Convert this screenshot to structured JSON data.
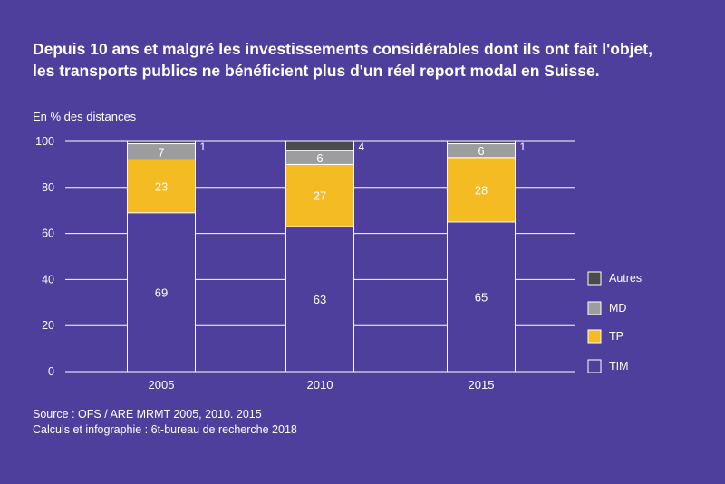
{
  "title_lines": [
    "Depuis 10 ans et malgré les investissements considérables dont ils ont fait l'objet,",
    "les transports publics ne bénéficient plus d'un réel report modal en Suisse."
  ],
  "source_lines": [
    "Source : OFS / ARE MRMT 2005, 2010. 2015",
    "Calculs et infographie : 6t-bureau de recherche 2018"
  ],
  "colors": {
    "background": "#4f3f9c",
    "TIM": "#4f3f9c",
    "TP": "#f4bb23",
    "MD": "#9d9d9f",
    "Autres": "#4b4b4e"
  },
  "chart_data": {
    "type": "bar",
    "stacked": true,
    "ylabel": "En % des distances",
    "xlabel": "",
    "ylim": [
      0,
      100
    ],
    "yticks": [
      0,
      20,
      40,
      60,
      80,
      100
    ],
    "grid": true,
    "legend_position": "right",
    "categories": [
      "2005",
      "2010",
      "2015"
    ],
    "series": [
      {
        "name": "TIM",
        "values": [
          69,
          63,
          65
        ]
      },
      {
        "name": "TP",
        "values": [
          23,
          27,
          28
        ]
      },
      {
        "name": "MD",
        "values": [
          7,
          6,
          6
        ]
      },
      {
        "name": "Autres",
        "values": [
          1,
          4,
          1
        ]
      }
    ],
    "legend_order": [
      "Autres",
      "MD",
      "TP",
      "TIM"
    ]
  }
}
